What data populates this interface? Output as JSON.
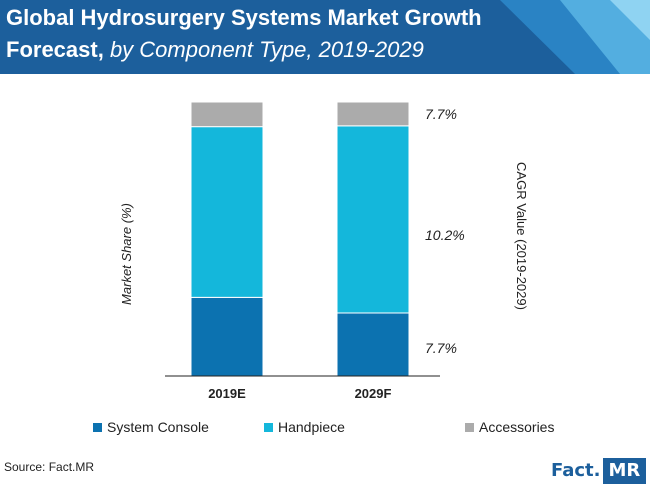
{
  "header": {
    "title_bold_line1": "Global Hydrosurgery Systems Market Growth",
    "title_bold_line2": "Forecast,",
    "title_italic": " by Component Type, 2019-2029"
  },
  "chart_data": {
    "type": "bar",
    "stacked": true,
    "categories": [
      "2019E",
      "2029F"
    ],
    "series": [
      {
        "name": "System Console",
        "color": "#0c72b0",
        "values": [
          28.7,
          23.0
        ]
      },
      {
        "name": "Handpiece",
        "color": "#14b7db",
        "values": [
          62.3,
          68.3
        ]
      },
      {
        "name": "Accessories",
        "color": "#ababab",
        "values": [
          9.0,
          8.7
        ]
      }
    ],
    "ylabel": "Market Share (%)",
    "y2label": "CAGR Value (2019-2029)",
    "ylim": [
      0,
      100
    ],
    "grid": false,
    "legend_position": "bottom",
    "cagr_labels": [
      "7.7%",
      "10.2%",
      "7.7%"
    ]
  },
  "footer": {
    "source": "Source: Fact.MR",
    "logo_fact": "Fact.",
    "logo_mr": "MR"
  }
}
